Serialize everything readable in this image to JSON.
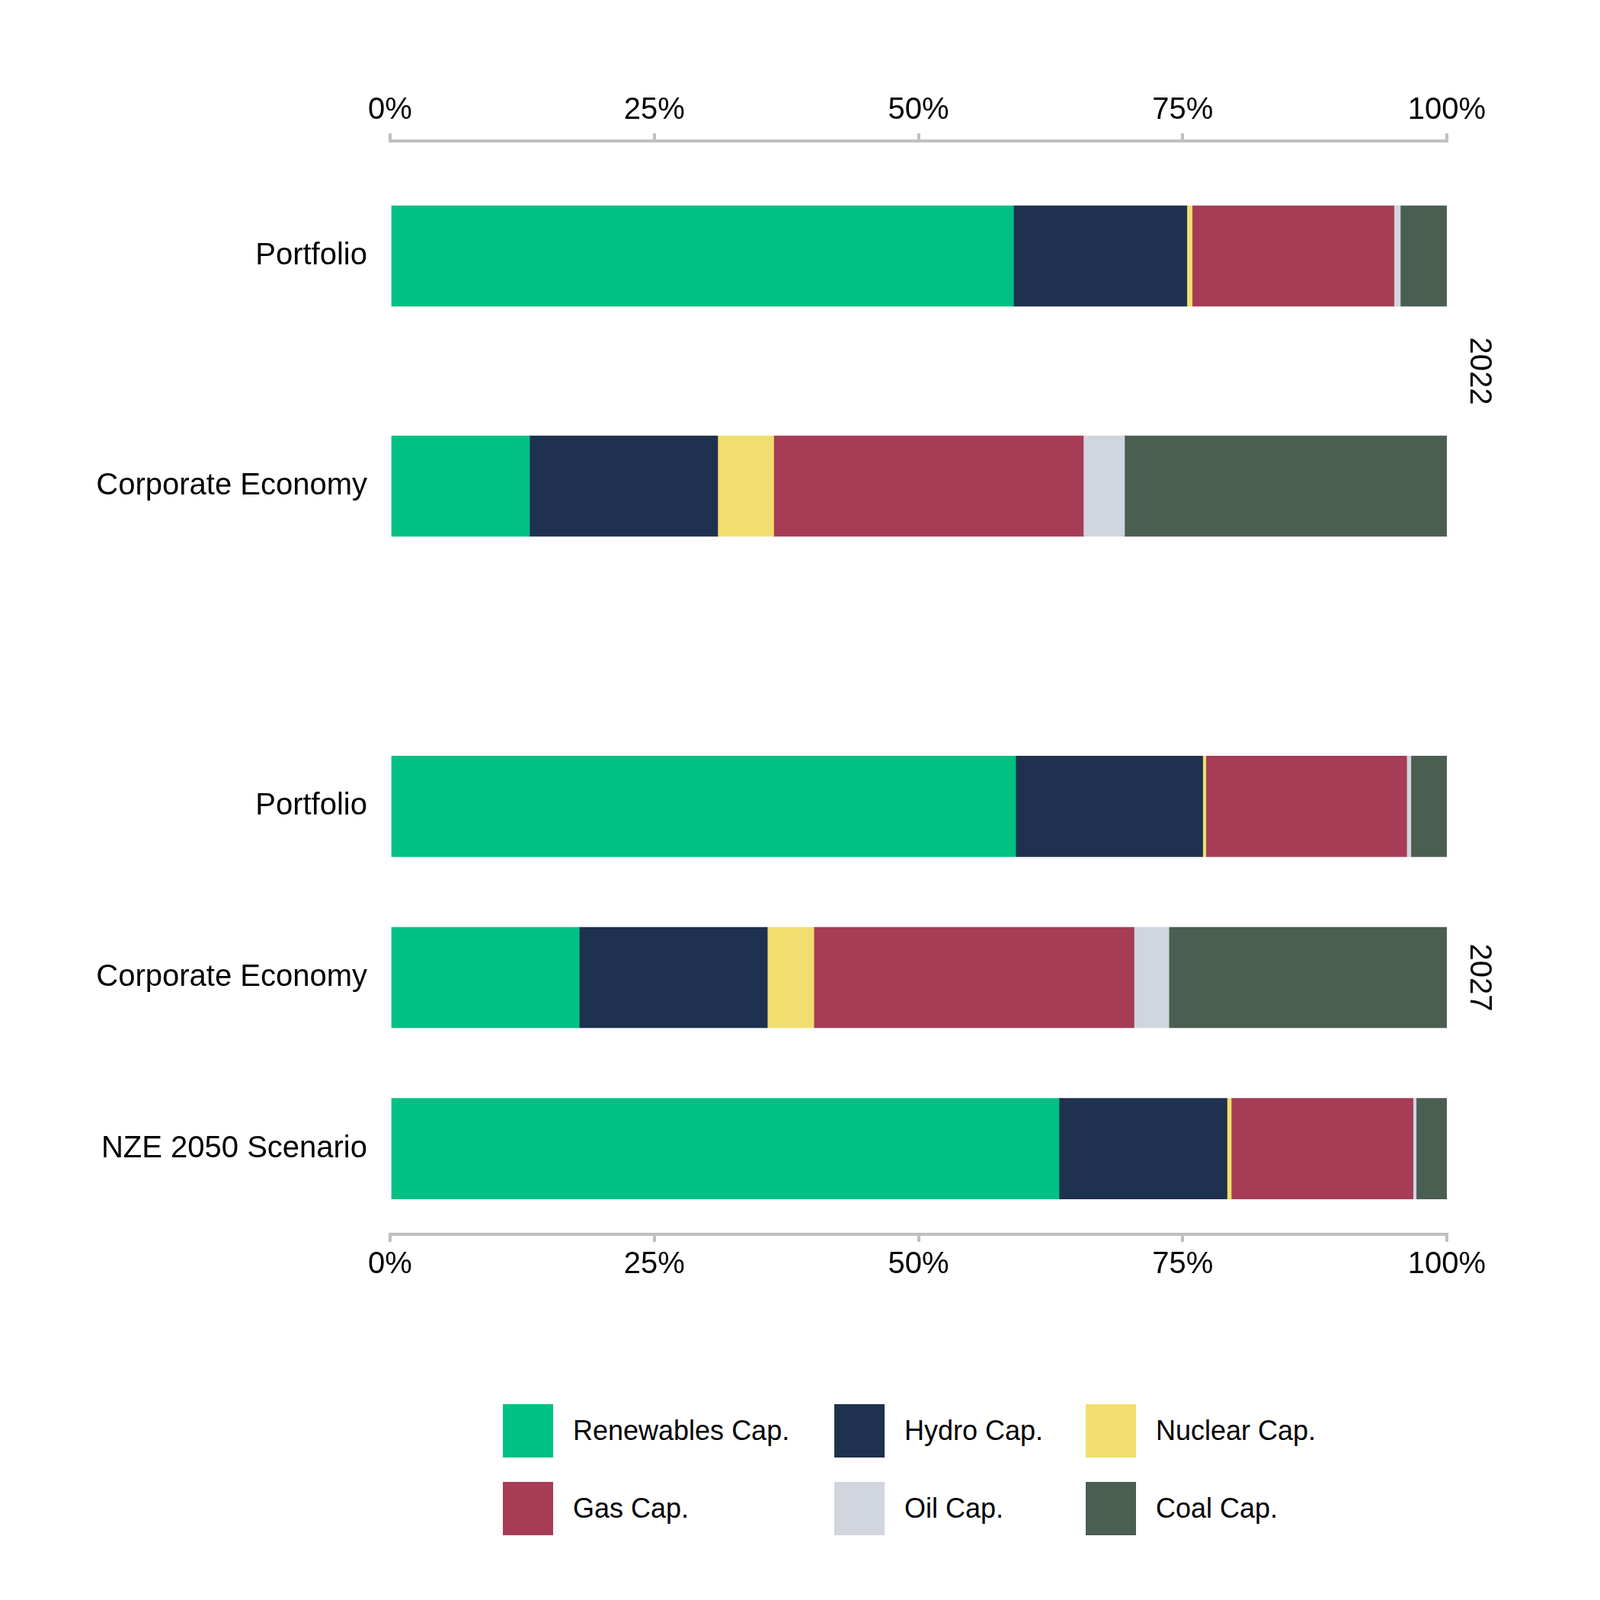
{
  "chart_data": [
    {
      "type": "bar",
      "title": "2022",
      "orientation": "horizontal",
      "stacked": true,
      "grid": false,
      "categories": [
        "Portfolio",
        "Corporate Economy"
      ],
      "series": [
        {
          "name": "Renewables Cap.",
          "color": "#00c084",
          "values": [
            59.0,
            13.2
          ]
        },
        {
          "name": "Hydro Cap.",
          "color": "#1e314e",
          "values": [
            16.4,
            17.8
          ]
        },
        {
          "name": "Nuclear Cap.",
          "color": "#f0df6e",
          "values": [
            0.5,
            5.3
          ]
        },
        {
          "name": "Gas Cap.",
          "color": "#a63c56",
          "values": [
            19.1,
            29.3
          ]
        },
        {
          "name": "Oil Cap.",
          "color": "#d0d5de",
          "values": [
            0.6,
            3.9
          ]
        },
        {
          "name": "Coal Cap.",
          "color": "#4b5e52",
          "values": [
            4.4,
            30.5
          ]
        }
      ],
      "xlim": [
        0,
        100
      ],
      "xticks": [
        {
          "value": 0,
          "label": "0%"
        },
        {
          "value": 25,
          "label": "25%"
        },
        {
          "value": 50,
          "label": "50%"
        },
        {
          "value": 75,
          "label": "75%"
        },
        {
          "value": 100,
          "label": "100%"
        }
      ]
    },
    {
      "type": "bar",
      "title": "2027",
      "orientation": "horizontal",
      "stacked": true,
      "grid": false,
      "legend": "bottom",
      "categories": [
        "Portfolio",
        "Corporate Economy",
        "NZE 2050 Scenario"
      ],
      "series": [
        {
          "name": "Renewables Cap.",
          "color": "#00c084",
          "values": [
            59.2,
            17.9,
            63.3
          ]
        },
        {
          "name": "Hydro Cap.",
          "color": "#1e314e",
          "values": [
            17.7,
            17.8,
            15.9
          ]
        },
        {
          "name": "Nuclear Cap.",
          "color": "#f0df6e",
          "values": [
            0.3,
            4.4,
            0.4
          ]
        },
        {
          "name": "Gas Cap.",
          "color": "#a63c56",
          "values": [
            19.0,
            30.3,
            17.2
          ]
        },
        {
          "name": "Oil Cap.",
          "color": "#d0d5de",
          "values": [
            0.4,
            3.3,
            0.3
          ]
        },
        {
          "name": "Coal Cap.",
          "color": "#4b5e52",
          "values": [
            3.4,
            26.3,
            2.9
          ]
        }
      ],
      "xlim": [
        0,
        100
      ],
      "xticks": [
        {
          "value": 0,
          "label": "0%"
        },
        {
          "value": 25,
          "label": "25%"
        },
        {
          "value": 50,
          "label": "50%"
        },
        {
          "value": 75,
          "label": "75%"
        },
        {
          "value": 100,
          "label": "100%"
        }
      ]
    }
  ]
}
